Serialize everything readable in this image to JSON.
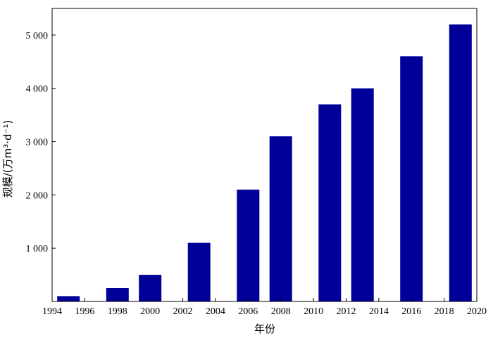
{
  "chart_data": {
    "type": "bar",
    "title": "",
    "xlabel": "年份",
    "ylabel": "规模/(万m³·d⁻¹)",
    "xlim": [
      1994,
      2020
    ],
    "ylim": [
      0,
      5500
    ],
    "x_ticks": [
      "1994",
      "1996",
      "1998",
      "2000",
      "2002",
      "2004",
      "2006",
      "2008",
      "2010",
      "2012",
      "2014",
      "2016",
      "2018",
      "2020"
    ],
    "y_ticks": [
      {
        "value": 1000,
        "label": "1 000"
      },
      {
        "value": 2000,
        "label": "2 000"
      },
      {
        "value": 3000,
        "label": "3 000"
      },
      {
        "value": 4000,
        "label": "4 000"
      },
      {
        "value": 5000,
        "label": "5 000"
      }
    ],
    "x": [
      1995,
      1998,
      2000,
      2003,
      2006,
      2008,
      2011,
      2013,
      2016,
      2019
    ],
    "values": [
      100,
      250,
      500,
      1100,
      2100,
      3100,
      3700,
      4000,
      4600,
      5200
    ],
    "bar_color": "#000099",
    "grid": false
  }
}
